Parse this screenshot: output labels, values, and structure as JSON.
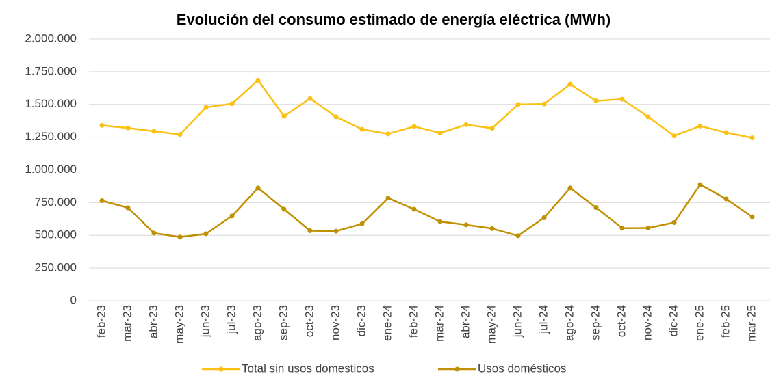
{
  "chart_data": {
    "type": "line",
    "title": "Evolución del consumo estimado de energía eléctrica (MWh)",
    "categories": [
      "feb-23",
      "mar-23",
      "abr-23",
      "may-23",
      "jun-23",
      "jul-23",
      "ago-23",
      "sep-23",
      "oct-23",
      "nov-23",
      "dic-23",
      "ene-24",
      "feb-24",
      "mar-24",
      "abr-24",
      "may-24",
      "jun-24",
      "jul-24",
      "ago-24",
      "sep-24",
      "oct-24",
      "nov-24",
      "dic-24",
      "ene-25",
      "feb-25",
      "mar-25"
    ],
    "series": [
      {
        "name": "Total sin usos domesticos",
        "color": "#fbc012",
        "values": [
          1340000,
          1320000,
          1295000,
          1270000,
          1478000,
          1505000,
          1685000,
          1410000,
          1545000,
          1405000,
          1310000,
          1275000,
          1332000,
          1282000,
          1345000,
          1318000,
          1500000,
          1503000,
          1655000,
          1527000,
          1540000,
          1405000,
          1260000,
          1335000,
          1285000,
          1245000
        ]
      },
      {
        "name": "Usos domésticos",
        "color": "#bf9000",
        "values": [
          765000,
          710000,
          517000,
          487000,
          512000,
          648000,
          862000,
          700000,
          535000,
          532000,
          588000,
          785000,
          700000,
          605000,
          580000,
          552000,
          497000,
          635000,
          862000,
          712000,
          555000,
          556000,
          598000,
          888000,
          778000,
          642000
        ]
      }
    ],
    "ylim": [
      0,
      2000000
    ],
    "yticks": [
      0,
      {
        "value": 250000,
        "label": "250.000"
      },
      {
        "value": 500000,
        "label": "500.000"
      },
      {
        "value": 750000,
        "label": "750.000"
      },
      {
        "value": 1000000,
        "label": "1.000.000"
      },
      {
        "value": 1250000,
        "label": "1.250.000"
      },
      {
        "value": 1500000,
        "label": "1.500.000"
      },
      {
        "value": 1750000,
        "label": "1.750.000"
      },
      {
        "value": 2000000,
        "label": "2.000.000"
      }
    ],
    "grid": true,
    "legend": "bottom"
  }
}
